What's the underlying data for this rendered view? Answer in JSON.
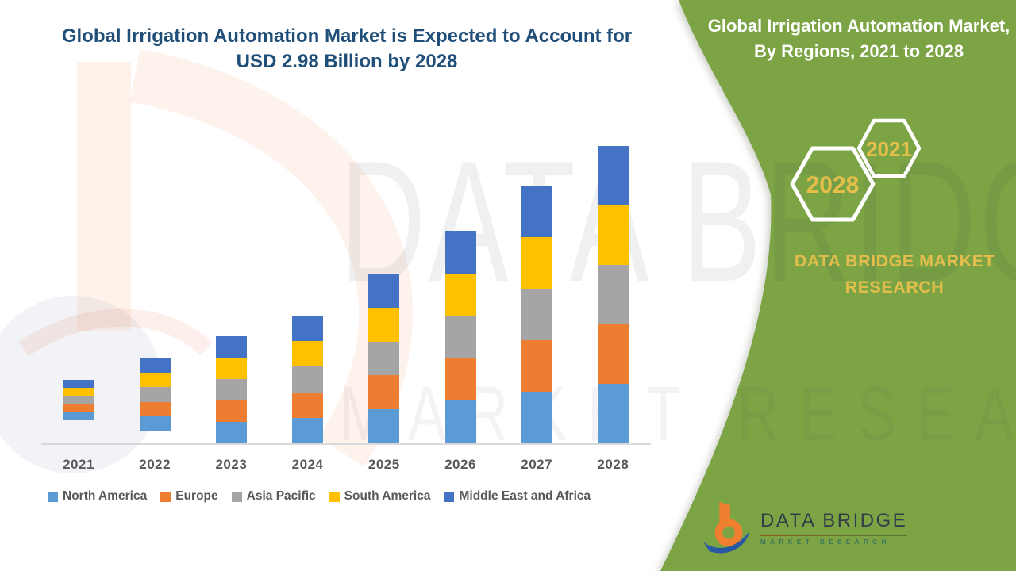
{
  "header": {
    "title": "Global Irrigation Automation Market is Expected to Account for USD 2.98 Billion by 2028"
  },
  "side_panel": {
    "title": "Global Irrigation Automation Market, By Regions, 2021 to 2028",
    "hexagons": [
      {
        "label": "2028"
      },
      {
        "label": "2021"
      }
    ],
    "brand_text": "DATA BRIDGE MARKET RESEARCH",
    "panel_color": "#7CA445",
    "gold_color": "#E3BE4C"
  },
  "watermark": {
    "line1": "DATA BRIDGE",
    "line2": "MARKET RESEARCH"
  },
  "chart_data": {
    "type": "bar",
    "stacked": true,
    "title": "Global Irrigation Automation Market is Expected to Account for USD 2.98 Billion by 2028",
    "unit": "USD Billion",
    "categories": [
      "2021",
      "2022",
      "2023",
      "2024",
      "2025",
      "2026",
      "2027",
      "2028"
    ],
    "totals": [
      0.64,
      0.85,
      1.07,
      1.28,
      1.7,
      2.13,
      2.58,
      2.98
    ],
    "series": [
      {
        "name": "North America",
        "color": "#5B9BD5",
        "values": [
          0.128,
          0.17,
          0.214,
          0.256,
          0.34,
          0.426,
          0.516,
          0.596
        ]
      },
      {
        "name": "Europe",
        "color": "#ED7D31",
        "values": [
          0.128,
          0.17,
          0.214,
          0.256,
          0.34,
          0.426,
          0.516,
          0.596
        ]
      },
      {
        "name": "Asia Pacific",
        "color": "#A5A5A5",
        "values": [
          0.128,
          0.17,
          0.214,
          0.256,
          0.34,
          0.426,
          0.516,
          0.596
        ]
      },
      {
        "name": "South America",
        "color": "#FFC000",
        "values": [
          0.128,
          0.17,
          0.214,
          0.256,
          0.34,
          0.426,
          0.516,
          0.596
        ]
      },
      {
        "name": "Middle East and Africa",
        "color": "#4472C4",
        "values": [
          0.128,
          0.17,
          0.214,
          0.256,
          0.34,
          0.426,
          0.516,
          0.596
        ]
      }
    ],
    "ylim": [
      0,
      3.2
    ],
    "grid": false,
    "axis_labels_shown": false,
    "legend_position": "bottom"
  },
  "legend": {
    "items": [
      {
        "label": "North America",
        "color": "#5B9BD5"
      },
      {
        "label": "Europe",
        "color": "#ED7D31"
      },
      {
        "label": "Asia Pacific",
        "color": "#A5A5A5"
      },
      {
        "label": "South America",
        "color": "#FFC000"
      },
      {
        "label": "Middle East and Africa",
        "color": "#4472C4"
      }
    ]
  },
  "footer_logo": {
    "name": "DATA BRIDGE",
    "tagline": "MARKET RESEARCH"
  }
}
